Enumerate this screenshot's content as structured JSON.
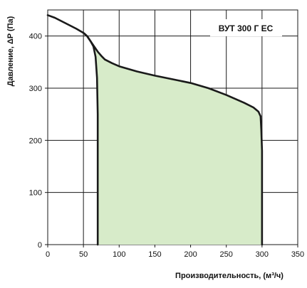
{
  "chart_data": {
    "type": "line",
    "title": "ВУТ 300 Г ЕС",
    "xlabel": "Производительность, (м³/ч)",
    "ylabel": "Давление, ΔP (Па)",
    "xlim": [
      0,
      350
    ],
    "ylim": [
      0,
      450
    ],
    "x_ticks": [
      0,
      50,
      100,
      150,
      200,
      250,
      300,
      350
    ],
    "y_ticks": [
      0,
      100,
      200,
      300,
      400
    ],
    "grid": true,
    "legend": "none",
    "colors": {
      "curve": "#1a1a1a",
      "fill": "#d7ebc9",
      "grid": "#1a1a1a",
      "background": "#ffffff"
    },
    "series": [
      {
        "role": "upper",
        "points": [
          [
            0,
            440
          ],
          [
            10,
            435
          ],
          [
            20,
            428
          ],
          [
            30,
            421
          ],
          [
            40,
            414
          ],
          [
            50,
            406
          ],
          [
            55,
            400
          ],
          [
            60,
            390
          ],
          [
            65,
            380
          ],
          [
            70,
            370
          ],
          [
            75,
            362
          ],
          [
            80,
            355
          ],
          [
            90,
            348
          ],
          [
            100,
            342
          ],
          [
            125,
            332
          ],
          [
            150,
            324
          ],
          [
            175,
            317
          ],
          [
            200,
            310
          ],
          [
            225,
            300
          ],
          [
            250,
            287
          ],
          [
            275,
            272
          ],
          [
            288,
            263
          ],
          [
            295,
            255
          ],
          [
            298,
            246
          ]
        ]
      },
      {
        "role": "right-edge",
        "points": [
          [
            298,
            246
          ],
          [
            299,
            220
          ],
          [
            300,
            180
          ],
          [
            300,
            120
          ],
          [
            300,
            60
          ],
          [
            300,
            0
          ]
        ]
      },
      {
        "role": "lower-left",
        "points": [
          [
            51,
            405
          ],
          [
            55,
            400
          ],
          [
            60,
            390
          ],
          [
            64,
            380
          ],
          [
            67,
            360
          ],
          [
            69,
            320
          ],
          [
            70,
            250
          ],
          [
            70,
            150
          ],
          [
            70,
            50
          ],
          [
            70,
            0
          ]
        ]
      }
    ]
  }
}
